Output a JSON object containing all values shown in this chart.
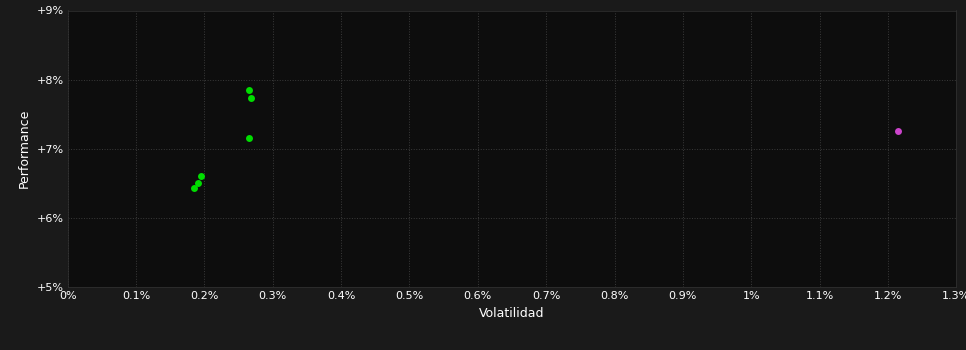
{
  "background_color": "#1a1a1a",
  "plot_bg_color": "#0d0d0d",
  "grid_color": "#3a3a3a",
  "grid_style": ":",
  "xlabel": "Volatilidad",
  "ylabel": "Performance",
  "xlabel_color": "#ffffff",
  "ylabel_color": "#ffffff",
  "tick_color": "#ffffff",
  "spine_color": "#333333",
  "xlim": [
    0.0,
    0.013
  ],
  "ylim": [
    0.05,
    0.09
  ],
  "xticks": [
    0.0,
    0.001,
    0.002,
    0.003,
    0.004,
    0.005,
    0.006,
    0.007,
    0.008,
    0.009,
    0.01,
    0.011,
    0.012,
    0.013
  ],
  "xtick_labels": [
    "0%",
    "0.1%",
    "0.2%",
    "0.3%",
    "0.4%",
    "0.5%",
    "0.6%",
    "0.7%",
    "0.8%",
    "0.9%",
    "1%",
    "1.1%",
    "1.2%",
    "1.3%"
  ],
  "yticks": [
    0.05,
    0.06,
    0.07,
    0.08,
    0.09
  ],
  "ytick_labels": [
    "+5%",
    "+6%",
    "+7%",
    "+8%",
    "+9%"
  ],
  "green_points": [
    [
      0.00195,
      0.066
    ],
    [
      0.0019,
      0.065
    ],
    [
      0.00185,
      0.0643
    ],
    [
      0.00265,
      0.0785
    ],
    [
      0.00268,
      0.0773
    ],
    [
      0.00265,
      0.0715
    ]
  ],
  "magenta_points": [
    [
      0.01215,
      0.0725
    ]
  ],
  "green_color": "#00dd00",
  "magenta_color": "#cc44cc",
  "marker_size": 5,
  "figsize": [
    9.66,
    3.5
  ],
  "dpi": 100,
  "font_size_ticks": 8,
  "font_size_labels": 9
}
